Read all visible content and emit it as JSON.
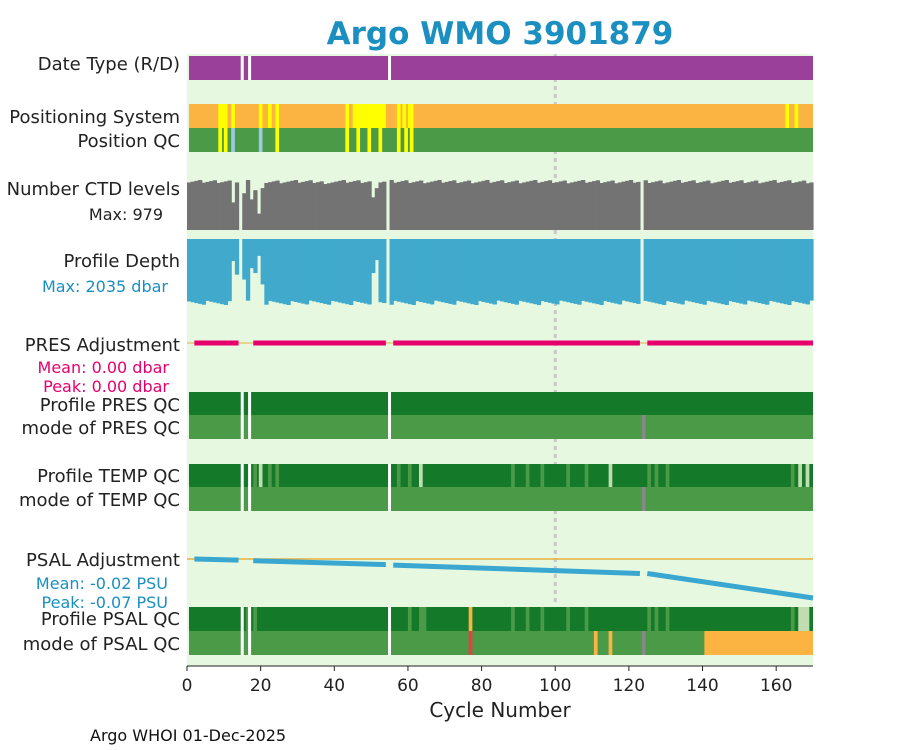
{
  "chart_data": {
    "type": "timeline",
    "title": "Argo WMO 3901879",
    "xlabel": "Cycle Number",
    "xlim": [
      0,
      170
    ],
    "xticks": [
      0,
      20,
      40,
      60,
      80,
      100,
      120,
      140,
      160
    ],
    "footer": "Argo WHOI 01-Dec-2025",
    "marker_line_cycle": 100,
    "colors": {
      "title": "#1a8fc0",
      "plot_bg": "#e6f8e0",
      "purple": "#9a3f9a",
      "orange": "#fbb441",
      "yellow": "#ffff00",
      "green": "#4a9a48",
      "dark_green": "#147a2a",
      "light_blue": "#9ec8e0",
      "pale_green": "#c0dcb0",
      "gray_qc": "#888888",
      "red": "#e84040",
      "ctd_gray": "#737373",
      "depth_blue": "#41aacc",
      "pres_pink": "#e6006e",
      "psal_blue": "#3aa7d0",
      "ref_line": "#e8b040",
      "marker": "#c8c8c8"
    },
    "labels": {
      "date_type": "Date Type (R/D)",
      "positioning": "Positioning System",
      "position_qc": "Position QC",
      "ctd_levels": "Number CTD levels",
      "ctd_max": "Max: 979",
      "profile_depth": "Profile Depth",
      "depth_max": "Max: 2035 dbar",
      "pres_adj": "PRES Adjustment",
      "pres_mean": "Mean: 0.00 dbar",
      "pres_peak": "Peak: 0.00 dbar",
      "prof_pres_qc": "Profile PRES QC",
      "mode_pres_qc": "mode of PRES QC",
      "prof_temp_qc": "Profile TEMP QC",
      "mode_temp_qc": "mode of TEMP QC",
      "psal_adj": "PSAL Adjustment",
      "psal_mean": "Mean: -0.02 PSU",
      "psal_peak": "Peak: -0.07 PSU",
      "prof_psal_qc": "Profile PSAL QC",
      "mode_psal_qc": "mode of PSAL QC"
    },
    "missing_cycles": [
      15,
      55,
      124
    ],
    "date_type": {
      "base": "purple",
      "gaps": [
        15,
        17,
        55
      ]
    },
    "positioning": {
      "base": "orange",
      "marks": [
        {
          "from": 8.5,
          "to": 11,
          "color": "yellow"
        },
        {
          "from": 12,
          "to": 13,
          "color": "yellow"
        },
        {
          "from": 19.5,
          "to": 20.5,
          "color": "yellow"
        },
        {
          "from": 22,
          "to": 23,
          "color": "yellow"
        },
        {
          "from": 24,
          "to": 25,
          "color": "yellow"
        },
        {
          "from": 43,
          "to": 44,
          "color": "yellow"
        },
        {
          "from": 45,
          "to": 54,
          "color": "yellow"
        },
        {
          "from": 57,
          "to": 58,
          "color": "yellow"
        },
        {
          "from": 58.5,
          "to": 59.5,
          "color": "yellow"
        },
        {
          "from": 60,
          "to": 61.5,
          "color": "yellow"
        },
        {
          "from": 162.5,
          "to": 163.5,
          "color": "yellow"
        },
        {
          "from": 165,
          "to": 166,
          "color": "yellow"
        }
      ]
    },
    "position_qc": {
      "base": "green",
      "marks": [
        {
          "from": 8.5,
          "to": 9.5,
          "color": "yellow"
        },
        {
          "from": 10,
          "to": 11,
          "color": "yellow"
        },
        {
          "from": 12,
          "to": 13,
          "color": "light_blue"
        },
        {
          "from": 19.5,
          "to": 20.5,
          "color": "light_blue"
        },
        {
          "from": 24,
          "to": 25,
          "color": "yellow"
        },
        {
          "from": 43,
          "to": 44,
          "color": "yellow"
        },
        {
          "from": 46,
          "to": 47,
          "color": "yellow"
        },
        {
          "from": 49,
          "to": 50,
          "color": "yellow"
        },
        {
          "from": 52,
          "to": 53,
          "color": "yellow"
        },
        {
          "from": 57,
          "to": 58,
          "color": "yellow"
        },
        {
          "from": 59,
          "to": 60,
          "color": "yellow"
        },
        {
          "from": 60.5,
          "to": 61.5,
          "color": "yellow"
        }
      ]
    },
    "ctd_levels": {
      "max": 979,
      "typical_range": [
        915,
        979
      ],
      "low_points": [
        {
          "cycle": 13,
          "value": 540
        },
        {
          "cycle": 16,
          "value": 720
        },
        {
          "cycle": 18,
          "value": 600
        },
        {
          "cycle": 19,
          "value": 780
        },
        {
          "cycle": 20,
          "value": 320
        },
        {
          "cycle": 21,
          "value": 820
        },
        {
          "cycle": 38,
          "value": 900
        },
        {
          "cycle": 51,
          "value": 640
        },
        {
          "cycle": 52,
          "value": 820
        }
      ]
    },
    "profile_depth": {
      "max": 2035,
      "typical_range": [
        1900,
        2035
      ],
      "low_points": [
        {
          "cycle": 13,
          "value": 680
        },
        {
          "cycle": 14,
          "value": 1100
        },
        {
          "cycle": 16,
          "value": 1250
        },
        {
          "cycle": 18,
          "value": 900
        },
        {
          "cycle": 19,
          "value": 1050
        },
        {
          "cycle": 20,
          "value": 520
        },
        {
          "cycle": 21,
          "value": 1400
        },
        {
          "cycle": 51,
          "value": 1050
        },
        {
          "cycle": 52,
          "value": 650
        }
      ]
    },
    "pres_adjustment": {
      "mean": 0.0,
      "peak": 0.0,
      "segments": [
        [
          2,
          14
        ],
        [
          18,
          54
        ],
        [
          56,
          123
        ],
        [
          125,
          170
        ]
      ],
      "values": 0
    },
    "profile_pres_qc": {
      "base": "dark_green",
      "marks": []
    },
    "mode_pres_qc": {
      "base": "green",
      "marks": [
        {
          "from": 123.5,
          "to": 124.5,
          "color": "gray_qc"
        }
      ]
    },
    "profile_temp_qc": {
      "base": "dark_green",
      "marks": [
        {
          "from": 18,
          "to": 19,
          "color": "green"
        },
        {
          "from": 22,
          "to": 23,
          "color": "green"
        },
        {
          "from": 24,
          "to": 25,
          "color": "green"
        },
        {
          "from": 57,
          "to": 58,
          "color": "green"
        },
        {
          "from": 60,
          "to": 61,
          "color": "green"
        },
        {
          "from": 63,
          "to": 64,
          "color": "green"
        },
        {
          "from": 88,
          "to": 89,
          "color": "green"
        },
        {
          "from": 92,
          "to": 93,
          "color": "green"
        },
        {
          "from": 96,
          "to": 97,
          "color": "green"
        },
        {
          "from": 103,
          "to": 104,
          "color": "green"
        },
        {
          "from": 108,
          "to": 109,
          "color": "green"
        },
        {
          "from": 125,
          "to": 126,
          "color": "green"
        },
        {
          "from": 127,
          "to": 128,
          "color": "green"
        },
        {
          "from": 130,
          "to": 131,
          "color": "green"
        },
        {
          "from": 164,
          "to": 165,
          "color": "green"
        },
        {
          "from": 166,
          "to": 167,
          "color": "green"
        },
        {
          "from": 168,
          "to": 169,
          "color": "green"
        },
        {
          "from": 19.5,
          "to": 20.5,
          "color": "pale_green"
        },
        {
          "from": 63,
          "to": 64,
          "color": "pale_green"
        },
        {
          "from": 114.5,
          "to": 115.5,
          "color": "pale_green"
        },
        {
          "from": 166,
          "to": 167,
          "color": "pale_green"
        },
        {
          "from": 168,
          "to": 169,
          "color": "pale_green"
        }
      ]
    },
    "mode_temp_qc": {
      "base": "green",
      "marks": [
        {
          "from": 123.5,
          "to": 124.5,
          "color": "gray_qc"
        }
      ]
    },
    "psal_adjustment": {
      "mean": -0.02,
      "peak": -0.07,
      "ylim": [
        -0.08,
        0.01
      ],
      "points": [
        {
          "cycle": 2,
          "value": 0.0
        },
        {
          "cycle": 14,
          "value": -0.002
        },
        {
          "cycle": 18,
          "value": -0.003
        },
        {
          "cycle": 54,
          "value": -0.01
        },
        {
          "cycle": 56,
          "value": -0.011
        },
        {
          "cycle": 123,
          "value": -0.026
        },
        {
          "cycle": 125,
          "value": -0.026
        },
        {
          "cycle": 170,
          "value": -0.07
        }
      ],
      "segments": [
        [
          2,
          14
        ],
        [
          18,
          54
        ],
        [
          56,
          123
        ],
        [
          125,
          170
        ]
      ]
    },
    "profile_psal_qc": {
      "base": "dark_green",
      "marks": [
        {
          "from": 16,
          "to": 17,
          "color": "green"
        },
        {
          "from": 18,
          "to": 19,
          "color": "green"
        },
        {
          "from": 60,
          "to": 61,
          "color": "green"
        },
        {
          "from": 63,
          "to": 65,
          "color": "green"
        },
        {
          "from": 76.5,
          "to": 77.5,
          "color": "orange"
        },
        {
          "from": 88,
          "to": 89,
          "color": "green"
        },
        {
          "from": 92,
          "to": 93,
          "color": "green"
        },
        {
          "from": 96,
          "to": 97,
          "color": "green"
        },
        {
          "from": 103,
          "to": 104,
          "color": "green"
        },
        {
          "from": 108,
          "to": 109,
          "color": "green"
        },
        {
          "from": 125,
          "to": 126,
          "color": "green"
        },
        {
          "from": 127,
          "to": 128,
          "color": "green"
        },
        {
          "from": 130,
          "to": 131,
          "color": "green"
        },
        {
          "from": 164,
          "to": 165,
          "color": "green"
        },
        {
          "from": 166,
          "to": 169,
          "color": "pale_green"
        }
      ]
    },
    "mode_psal_qc": {
      "base": "green",
      "marks": [
        {
          "from": 76.5,
          "to": 77.5,
          "color": "red"
        },
        {
          "from": 110.5,
          "to": 111.5,
          "color": "orange"
        },
        {
          "from": 114.5,
          "to": 115.5,
          "color": "orange"
        },
        {
          "from": 123.5,
          "to": 124.5,
          "color": "gray_qc"
        },
        {
          "from": 140.5,
          "to": 170,
          "color": "orange"
        }
      ]
    }
  }
}
